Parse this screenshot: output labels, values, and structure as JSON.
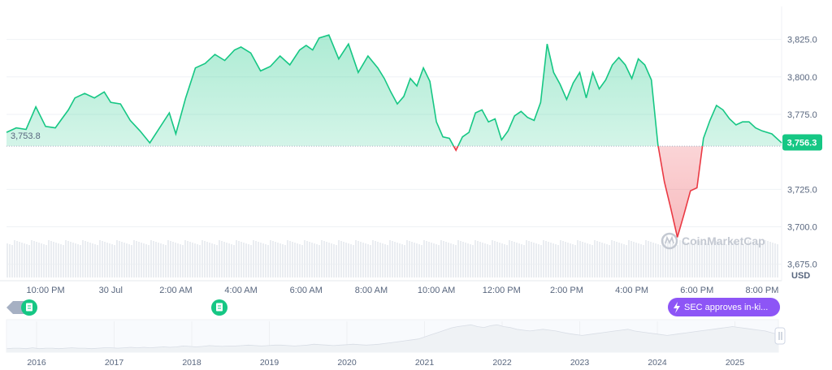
{
  "chart_data": {
    "type": "area",
    "title": "",
    "currency": "USD",
    "baseline_value": 3753.8,
    "baseline_label": "3,753.8",
    "current_value": 3756.3,
    "current_label": "3,756.3",
    "ylim": [
      3664,
      3847
    ],
    "y_ticks": [
      {
        "value": 3825,
        "label": "3,825.0"
      },
      {
        "value": 3800,
        "label": "3,800.0"
      },
      {
        "value": 3775,
        "label": "3,775.0"
      },
      {
        "value": 3725,
        "label": "3,725.0"
      },
      {
        "value": 3700,
        "label": "3,700.0"
      },
      {
        "value": 3675,
        "label": "3,675.0"
      }
    ],
    "x_ticks": [
      "10:00 PM",
      "30 Jul",
      "2:00 AM",
      "4:00 AM",
      "6:00 AM",
      "8:00 AM",
      "10:00 AM",
      "12:00 PM",
      "2:00 PM",
      "4:00 PM",
      "6:00 PM",
      "8:00 PM"
    ],
    "x_tick_hours": [
      0,
      2,
      4,
      6,
      8,
      10,
      12,
      14,
      16,
      18,
      20,
      22
    ],
    "x_range_hours": [
      -1.2,
      22.6
    ],
    "series": [
      {
        "x": [
          -1.2,
          -0.9,
          -0.6,
          -0.3,
          0,
          0.3,
          0.5,
          0.7,
          0.9,
          1.2,
          1.5,
          1.8,
          2.0,
          2.3,
          2.6,
          2.9,
          3.2,
          3.5,
          3.8,
          4.0,
          4.3,
          4.6,
          4.9,
          5.2,
          5.5,
          5.8,
          6.0,
          6.3,
          6.6,
          6.9,
          7.2,
          7.5,
          7.8,
          8.0,
          8.2,
          8.4,
          8.7,
          9.0,
          9.3,
          9.6,
          9.9,
          10.2,
          10.4,
          10.6,
          10.8,
          11.0,
          11.2,
          11.4,
          11.6,
          11.8,
          12.0,
          12.2,
          12.4,
          12.6,
          12.8,
          13.0,
          13.2,
          13.4,
          13.6,
          13.8,
          14.0,
          14.2,
          14.4,
          14.6,
          14.8,
          15.0,
          15.2,
          15.4,
          15.6,
          15.8,
          16.0,
          16.2,
          16.4,
          16.6,
          16.8,
          17.0,
          17.2,
          17.4,
          17.6,
          17.8,
          18.0,
          18.2,
          18.4,
          18.6,
          18.8,
          19.0,
          19.2,
          19.4,
          19.6,
          19.8,
          20.0,
          20.2,
          20.4,
          20.6,
          20.8,
          21.0,
          21.2,
          21.4,
          21.6,
          21.8,
          22.0,
          22.3,
          22.6
        ],
        "y": [
          3763,
          3766,
          3765,
          3780,
          3767,
          3766,
          3772,
          3778,
          3786,
          3789,
          3786,
          3790,
          3783,
          3782,
          3771,
          3764,
          3756,
          3766,
          3776,
          3762,
          3786,
          3806,
          3809,
          3815,
          3811,
          3818,
          3820,
          3816,
          3804,
          3807,
          3814,
          3808,
          3818,
          3821,
          3818,
          3826,
          3828,
          3812,
          3822,
          3803,
          3814,
          3806,
          3799,
          3790,
          3782,
          3787,
          3799,
          3794,
          3806,
          3797,
          3770,
          3760,
          3759,
          3751,
          3760,
          3763,
          3776,
          3778,
          3770,
          3772,
          3758,
          3764,
          3774,
          3777,
          3773,
          3771,
          3783,
          3822,
          3803,
          3795,
          3785,
          3796,
          3803,
          3786,
          3803,
          3792,
          3798,
          3808,
          3813,
          3808,
          3799,
          3812,
          3808,
          3798,
          3755,
          3730,
          3712,
          3693,
          3708,
          3724,
          3726,
          3759,
          3771,
          3781,
          3778,
          3772,
          3768,
          3770,
          3770,
          3766,
          3764,
          3762,
          3756
        ]
      }
    ],
    "navigator": {
      "years": [
        "2016",
        "2017",
        "2018",
        "2019",
        "2020",
        "2021",
        "2022",
        "2023",
        "2024",
        "2025"
      ],
      "values": [
        8,
        9,
        9,
        8,
        10,
        8,
        9,
        9,
        8,
        9,
        10,
        9,
        9,
        8,
        9,
        10,
        10,
        9,
        10,
        11,
        10,
        11,
        10,
        11,
        12,
        11,
        12,
        14,
        13,
        12,
        13,
        15,
        14,
        13,
        14,
        14,
        15,
        16,
        15,
        14,
        15,
        16,
        16,
        15,
        14,
        15,
        16,
        18,
        17,
        16,
        15,
        16,
        17,
        18,
        17,
        16,
        17,
        18,
        20,
        22,
        24,
        26,
        28,
        30,
        35,
        40,
        45,
        50,
        55,
        58,
        60,
        62,
        58,
        56,
        60,
        62,
        58,
        56,
        52,
        50,
        48,
        50,
        52,
        50,
        48,
        45,
        42,
        40,
        38,
        40,
        42,
        44,
        46,
        48,
        50,
        52,
        48,
        46,
        44,
        42,
        40,
        38,
        40,
        42,
        44,
        46,
        48,
        50,
        52,
        54,
        56,
        58,
        56,
        54,
        52,
        50,
        48,
        44,
        40
      ]
    }
  },
  "annotations": {
    "event_label": "SEC approves in-ki...",
    "watermark": "CoinMarketCap"
  },
  "colors": {
    "up": "#16c784",
    "down": "#ea3943",
    "event": "#8d55f6",
    "grid": "#eff2f5"
  }
}
